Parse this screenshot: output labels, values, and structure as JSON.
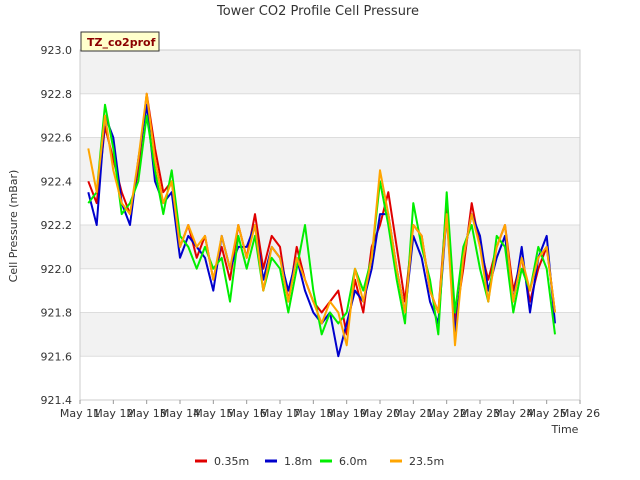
{
  "chart_data": {
    "type": "line",
    "title": "Tower CO2 Profile Cell Pressure",
    "xlabel": "Time",
    "ylabel": "Cell Pressure (mBar)",
    "badge": "TZ_co2prof",
    "xlim": [
      11,
      26
    ],
    "ylim": [
      921.4,
      923.0
    ],
    "grid": true,
    "legend_position": "bottom",
    "background_bands": "alternating light gray",
    "x_ticks": [
      "May 11",
      "May 12",
      "May 13",
      "May 14",
      "May 15",
      "May 16",
      "May 17",
      "May 18",
      "May 19",
      "May 20",
      "May 21",
      "May 22",
      "May 23",
      "May 24",
      "May 25",
      "May 26"
    ],
    "y_ticks": [
      "921.4",
      "921.6",
      "921.8",
      "922.0",
      "922.2",
      "922.4",
      "922.6",
      "922.8",
      "923.0"
    ],
    "x": [
      11.25,
      11.5,
      11.75,
      12.0,
      12.25,
      12.5,
      12.75,
      13.0,
      13.25,
      13.5,
      13.75,
      14.0,
      14.25,
      14.5,
      14.75,
      15.0,
      15.25,
      15.5,
      15.75,
      16.0,
      16.25,
      16.5,
      16.75,
      17.0,
      17.25,
      17.5,
      17.75,
      18.0,
      18.25,
      18.5,
      18.75,
      19.0,
      19.25,
      19.5,
      19.75,
      20.0,
      20.25,
      20.5,
      20.75,
      21.0,
      21.25,
      21.5,
      21.75,
      22.0,
      22.25,
      22.5,
      22.75,
      23.0,
      23.25,
      23.5,
      23.75,
      24.0,
      24.25,
      24.5,
      24.75,
      25.0,
      25.25
    ],
    "series": [
      {
        "name": "0.35m",
        "color": "#e00000",
        "values": [
          922.4,
          922.3,
          922.65,
          922.5,
          922.35,
          922.25,
          922.45,
          922.8,
          922.55,
          922.35,
          922.4,
          922.1,
          922.2,
          922.05,
          922.15,
          921.95,
          922.1,
          921.95,
          922.2,
          922.05,
          922.25,
          922.0,
          922.15,
          922.1,
          921.85,
          922.1,
          921.95,
          921.85,
          921.8,
          921.85,
          921.9,
          921.7,
          921.95,
          921.8,
          922.1,
          922.2,
          922.35,
          922.1,
          921.85,
          922.2,
          922.15,
          921.9,
          921.8,
          922.3,
          921.75,
          922.0,
          922.3,
          922.1,
          921.95,
          922.1,
          922.2,
          921.9,
          922.05,
          921.85,
          922.0,
          922.1,
          921.8
        ]
      },
      {
        "name": "1.8m",
        "color": "#0000cc",
        "values": [
          922.35,
          922.2,
          922.7,
          922.6,
          922.3,
          922.2,
          922.5,
          922.75,
          922.4,
          922.3,
          922.35,
          922.05,
          922.15,
          922.1,
          922.05,
          921.9,
          922.15,
          922.0,
          922.1,
          922.1,
          922.2,
          921.95,
          922.1,
          922.05,
          921.9,
          922.05,
          921.9,
          921.8,
          921.75,
          921.8,
          921.6,
          921.75,
          921.9,
          921.85,
          922.0,
          922.25,
          922.25,
          922.0,
          921.8,
          922.15,
          922.05,
          921.85,
          921.75,
          922.25,
          921.7,
          922.05,
          922.25,
          922.15,
          921.9,
          922.05,
          922.15,
          921.85,
          922.1,
          921.8,
          922.05,
          922.15,
          921.75
        ]
      },
      {
        "name": "6.0m",
        "color": "#00ee00",
        "values": [
          922.3,
          922.35,
          922.75,
          922.55,
          922.25,
          922.3,
          922.4,
          922.7,
          922.45,
          922.25,
          922.45,
          922.15,
          922.1,
          922.0,
          922.1,
          922.0,
          922.05,
          921.85,
          922.15,
          922.0,
          922.15,
          921.9,
          922.05,
          922.0,
          921.8,
          922.0,
          922.2,
          921.9,
          921.7,
          921.8,
          921.75,
          921.8,
          922.0,
          921.9,
          922.05,
          922.4,
          922.2,
          921.95,
          921.75,
          922.3,
          922.1,
          921.95,
          921.7,
          922.35,
          921.8,
          922.1,
          922.2,
          922.0,
          921.85,
          922.15,
          922.1,
          921.8,
          922.0,
          921.9,
          922.1,
          922.0,
          921.7
        ]
      },
      {
        "name": "23.5m",
        "color": "#ffa500",
        "values": [
          922.55,
          922.35,
          922.7,
          922.45,
          922.3,
          922.25,
          922.5,
          922.8,
          922.5,
          922.3,
          922.4,
          922.1,
          922.2,
          922.1,
          922.15,
          921.95,
          922.15,
          922.0,
          922.2,
          922.05,
          922.2,
          921.9,
          922.1,
          922.05,
          921.85,
          922.05,
          921.95,
          921.85,
          921.75,
          921.85,
          921.8,
          921.65,
          922.0,
          921.85,
          922.05,
          922.45,
          922.25,
          922.0,
          921.8,
          922.2,
          922.15,
          921.9,
          921.8,
          922.25,
          921.65,
          922.05,
          922.25,
          922.1,
          921.85,
          922.1,
          922.2,
          921.85,
          922.05,
          921.9,
          922.05,
          922.1,
          921.8
        ]
      }
    ]
  }
}
